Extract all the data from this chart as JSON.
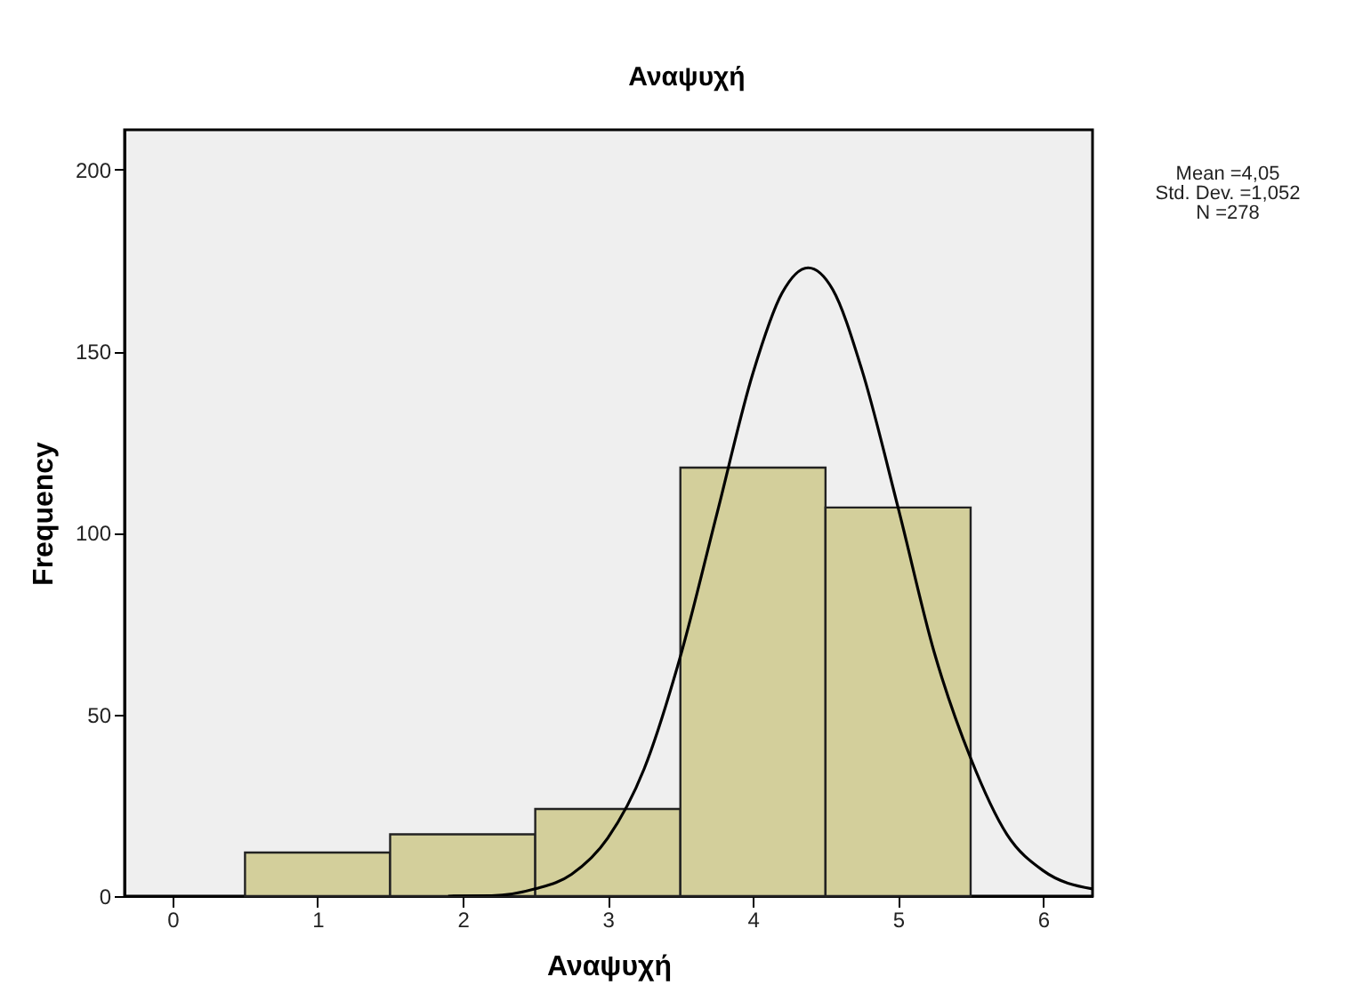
{
  "chart_data": {
    "type": "histogram",
    "title": "Αναψυχή",
    "xlabel": "Αναψυχή",
    "ylabel": "Frequency",
    "bins": [
      0.5,
      1.5,
      2.5,
      3.5,
      4.5,
      5.5
    ],
    "values": [
      12,
      17,
      24,
      118,
      107
    ],
    "color": "#d3cf9b",
    "series": [
      {
        "type": "line",
        "color": "#000000",
        "x": [
          1.9,
          2.2,
          2.5,
          2.75,
          3.0,
          3.25,
          3.5,
          3.75,
          4.0,
          4.2,
          4.38,
          4.55,
          4.75,
          5.0,
          5.25,
          5.5,
          5.75,
          6.0,
          6.34
        ],
        "values": [
          0,
          0.1,
          2,
          6,
          16,
          35,
          66,
          105,
          144,
          166,
          173,
          167,
          145,
          107,
          67,
          38,
          17,
          7,
          2
        ]
      }
    ],
    "xlim": [
      -0.33,
      6.34
    ],
    "xticks": [
      0,
      1,
      2,
      3,
      4,
      5,
      6
    ],
    "ylim": [
      0,
      211
    ],
    "yticks": [
      0,
      50,
      100,
      150,
      200
    ],
    "annotations": [
      "Mean =4,05",
      "Std. Dev. =1,052",
      "N =278"
    ]
  }
}
